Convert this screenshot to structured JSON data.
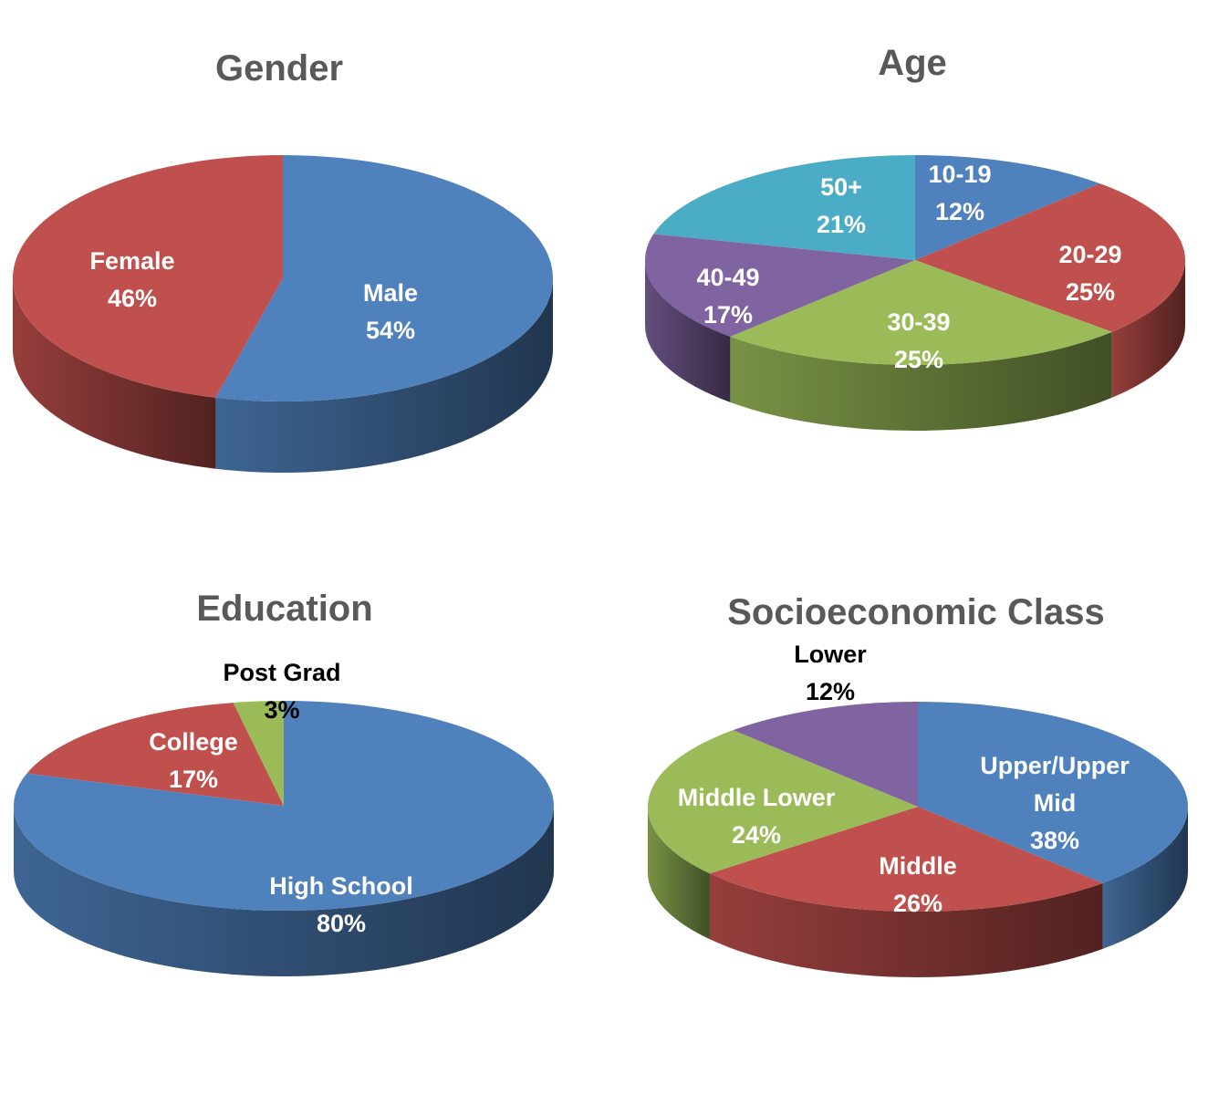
{
  "chart_data": [
    {
      "type": "pie",
      "title": "Gender",
      "slices": [
        {
          "label": "Male",
          "value": 54,
          "value_label": "54%",
          "color": "#4F81BD"
        },
        {
          "label": "Female",
          "value": 46,
          "value_label": "46%",
          "color": "#C0504D"
        }
      ]
    },
    {
      "type": "pie",
      "title": "Age",
      "slices": [
        {
          "label": "10-19",
          "value": 12,
          "value_label": "12%",
          "color": "#4F81BD"
        },
        {
          "label": "20-29",
          "value": 25,
          "value_label": "25%",
          "color": "#C0504D"
        },
        {
          "label": "30-39",
          "value": 25,
          "value_label": "25%",
          "color": "#9BBB59"
        },
        {
          "label": "40-49",
          "value": 17,
          "value_label": "17%",
          "color": "#8064A2"
        },
        {
          "label": "50+",
          "value": 21,
          "value_label": "21%",
          "color": "#4BACC6"
        }
      ]
    },
    {
      "type": "pie",
      "title": "Education",
      "slices": [
        {
          "label": "High School",
          "value": 80,
          "value_label": "80%",
          "color": "#4F81BD"
        },
        {
          "label": "College",
          "value": 17,
          "value_label": "17%",
          "color": "#C0504D"
        },
        {
          "label": "Post Grad",
          "value": 3,
          "value_label": "3%",
          "color": "#9BBB59"
        }
      ]
    },
    {
      "type": "pie",
      "title": "Socioeconomic Class",
      "slices": [
        {
          "label": "Upper/Upper Mid",
          "label_lines": [
            "Upper/Upper",
            "Mid"
          ],
          "value": 38,
          "value_label": "38%",
          "color": "#4F81BD"
        },
        {
          "label": "Middle",
          "value": 26,
          "value_label": "26%",
          "color": "#C0504D"
        },
        {
          "label": "Middle Lower",
          "value": 24,
          "value_label": "24%",
          "color": "#9BBB59"
        },
        {
          "label": "Lower",
          "value": 12,
          "value_label": "12%",
          "color": "#8064A2"
        }
      ]
    }
  ]
}
